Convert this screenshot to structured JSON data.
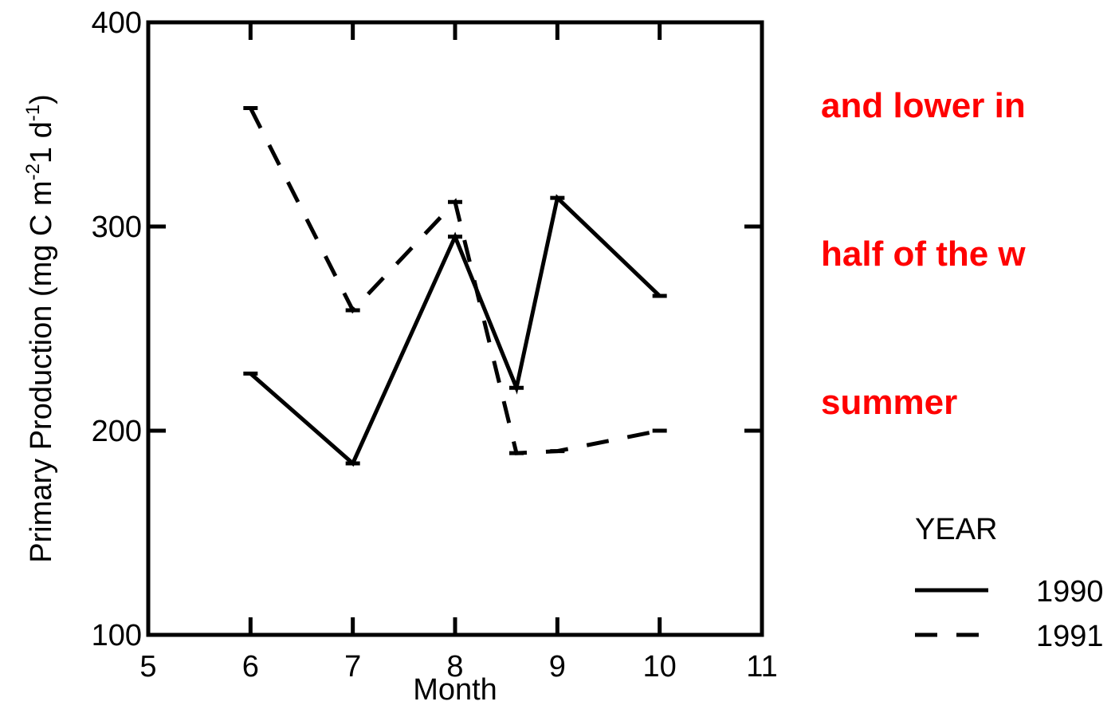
{
  "chart_data": {
    "type": "line",
    "xlabel": "Month",
    "ylabel": "Primary Production (mg C m",
    "ylabel_sup1": "-2",
    "ylabel_mid": "1 d",
    "ylabel_sup2": "-1",
    "ylabel_end": ")",
    "xlim": [
      5,
      11
    ],
    "ylim": [
      100,
      400
    ],
    "xticks": [
      5,
      6,
      7,
      8,
      9,
      10,
      11
    ],
    "yticks": [
      100,
      200,
      300,
      400
    ],
    "grid": false,
    "legend_title": "YEAR",
    "legend_position": "right",
    "series": [
      {
        "name": "1990",
        "style": "solid",
        "x": [
          6,
          7,
          8,
          8.6,
          9,
          10
        ],
        "y": [
          228,
          184,
          295,
          221,
          314,
          266
        ]
      },
      {
        "name": "1991",
        "style": "dashed",
        "x": [
          6,
          7,
          8,
          8.6,
          9,
          10
        ],
        "y": [
          358,
          259,
          312,
          189,
          190,
          200
        ]
      }
    ],
    "annotation": {
      "lines": [
        "and lower in",
        "half of the w",
        "summer"
      ],
      "color": "#ff0000"
    }
  }
}
